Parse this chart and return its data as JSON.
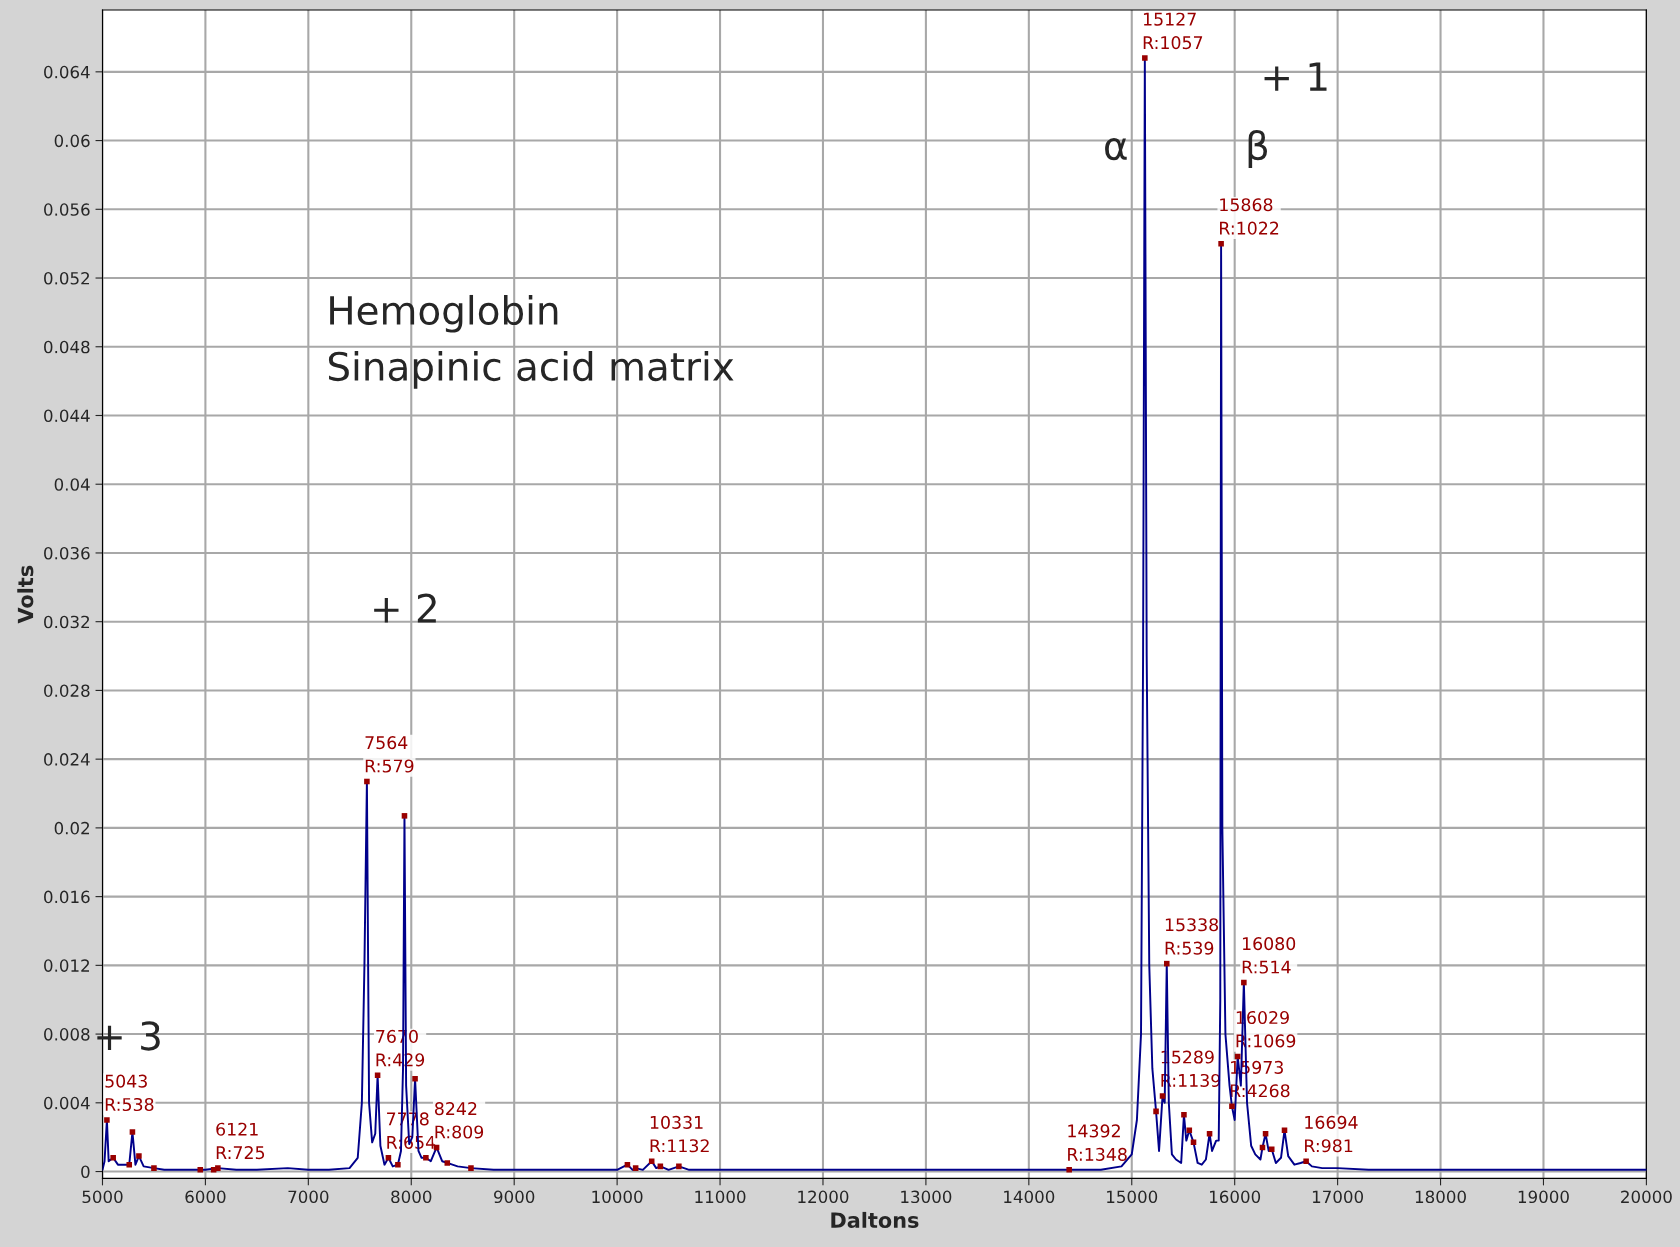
{
  "chart_data": {
    "type": "line",
    "xlabel": "Daltons",
    "ylabel": "Volts",
    "xlim": [
      5000,
      20000
    ],
    "xticks": [
      5000,
      6000,
      7000,
      8000,
      9000,
      10000,
      11000,
      12000,
      13000,
      14000,
      15000,
      16000,
      17000,
      18000,
      19000,
      20000
    ],
    "ylim": [
      -0.0004,
      0.0676
    ],
    "yticks": [
      0,
      0.004,
      0.008,
      0.012,
      0.016,
      0.02,
      0.024,
      0.028,
      0.032,
      0.036,
      0.04,
      0.044,
      0.048,
      0.052,
      0.056,
      0.06,
      0.064
    ],
    "grid": true,
    "series": [
      {
        "color": "#00008b",
        "marker": "none",
        "x": [
          5000,
          5020,
          5043,
          5060,
          5104,
          5150,
          5260,
          5291,
          5320,
          5354,
          5400,
          5500,
          5600,
          5800,
          6000,
          6121,
          6300,
          6500,
          6800,
          7000,
          7200,
          7400,
          7480,
          7520,
          7545,
          7569,
          7590,
          7620,
          7650,
          7673,
          7700,
          7740,
          7778,
          7820,
          7870,
          7900,
          7920,
          7934,
          7950,
          7980,
          8010,
          8037,
          8070,
          8100,
          8142,
          8190,
          8246,
          8300,
          8350,
          8450,
          8580,
          8800,
          9200,
          9600,
          10000,
          10100,
          10150,
          10180,
          10250,
          10336,
          10380,
          10420,
          10500,
          10600,
          10700,
          11000,
          11500,
          12000,
          12500,
          13000,
          13500,
          14000,
          14392,
          14700,
          14900,
          15000,
          15050,
          15090,
          15110,
          15127,
          15145,
          15170,
          15200,
          15236,
          15265,
          15299,
          15320,
          15340,
          15360,
          15390,
          15430,
          15480,
          15507,
          15530,
          15559,
          15600,
          15640,
          15680,
          15720,
          15756,
          15780,
          15820,
          15845,
          15860,
          15868,
          15880,
          15910,
          15950,
          15973,
          16000,
          16029,
          16060,
          16089,
          16120,
          16160,
          16200,
          16250,
          16270,
          16300,
          16330,
          16360,
          16400,
          16450,
          16484,
          16520,
          16580,
          16640,
          16694,
          16750,
          16850,
          17000,
          17300,
          17600,
          18000,
          18500,
          19000,
          19500,
          20000
        ],
        "values": [
          0.0001,
          0.0006,
          0.003,
          0.0006,
          0.0008,
          0.0004,
          0.0004,
          0.0023,
          0.0004,
          0.0009,
          0.0003,
          0.0002,
          0.0001,
          0.0001,
          0.0001,
          0.0002,
          0.0001,
          0.0001,
          0.0002,
          0.0001,
          0.0001,
          0.0002,
          0.0008,
          0.004,
          0.012,
          0.0227,
          0.004,
          0.0017,
          0.0022,
          0.0056,
          0.0015,
          0.0004,
          0.0008,
          0.0003,
          0.0004,
          0.0012,
          0.006,
          0.0207,
          0.005,
          0.0016,
          0.002,
          0.0054,
          0.0012,
          0.0008,
          0.0008,
          0.0006,
          0.0014,
          0.0006,
          0.0005,
          0.0003,
          0.0002,
          0.0001,
          0.0001,
          0.0001,
          0.0001,
          0.0004,
          0.0001,
          0.0002,
          0.0001,
          0.0006,
          0.0002,
          0.0003,
          0.0001,
          0.0003,
          0.0001,
          0.0001,
          0.0001,
          0.0001,
          0.0001,
          0.0001,
          0.0001,
          0.0001,
          0.0001,
          0.0001,
          0.0003,
          0.001,
          0.003,
          0.008,
          0.03,
          0.0648,
          0.03,
          0.012,
          0.006,
          0.0035,
          0.0012,
          0.0044,
          0.004,
          0.0121,
          0.004,
          0.001,
          0.0007,
          0.0005,
          0.0033,
          0.0018,
          0.0024,
          0.0017,
          0.0005,
          0.0004,
          0.0007,
          0.0022,
          0.0012,
          0.0018,
          0.0018,
          0.01,
          0.054,
          0.02,
          0.008,
          0.005,
          0.0038,
          0.003,
          0.0067,
          0.005,
          0.011,
          0.004,
          0.0015,
          0.001,
          0.0007,
          0.0014,
          0.0022,
          0.0012,
          0.0013,
          0.0005,
          0.0008,
          0.0024,
          0.0009,
          0.0004,
          0.0005,
          0.0006,
          0.0003,
          0.0002,
          0.0002,
          0.0001,
          0.0001,
          0.0001,
          0.0001,
          0.0001,
          0.0001,
          0.0001
        ]
      },
      {
        "type": "scatter",
        "color": "#990000",
        "marker": "square",
        "x": [
          5043,
          5104,
          5260,
          5291,
          5354,
          5500,
          5950,
          6080,
          6121,
          7569,
          7673,
          7778,
          7870,
          7934,
          8037,
          8142,
          8246,
          8350,
          8580,
          10100,
          10180,
          10336,
          10420,
          10600,
          14392,
          15127,
          15236,
          15299,
          15340,
          15507,
          15559,
          15600,
          15756,
          15868,
          15973,
          16029,
          16089,
          16270,
          16300,
          16360,
          16484,
          16694
        ],
        "values": [
          0.003,
          0.0008,
          0.0004,
          0.0023,
          0.0009,
          0.0002,
          0.0001,
          0.0001,
          0.0002,
          0.0227,
          0.0056,
          0.0008,
          0.0004,
          0.0207,
          0.0054,
          0.0008,
          0.0014,
          0.0005,
          0.0002,
          0.0004,
          0.0002,
          0.0006,
          0.0003,
          0.0003,
          0.0001,
          0.0648,
          0.0035,
          0.0044,
          0.0121,
          0.0033,
          0.0024,
          0.0017,
          0.0022,
          0.054,
          0.0038,
          0.0067,
          0.011,
          0.0014,
          0.0022,
          0.0013,
          0.0024,
          0.0006
        ]
      }
    ],
    "annotations": [
      "Hemoglobin",
      "Sinapinic acid matrix",
      "+ 3",
      "+ 2",
      "+ 1",
      "α",
      "β",
      {
        "text": "5043\nR:538",
        "x": 5043,
        "y": 0.003
      },
      {
        "text": "6121\nR:725",
        "x": 6121,
        "y": 0.0002
      },
      {
        "text": "7564\nR:579",
        "x": 7569,
        "y": 0.0227
      },
      {
        "text": "7670\nR:429",
        "x": 7673,
        "y": 0.0056
      },
      {
        "text": "7778\nR:654",
        "x": 7778,
        "y": 0.0008
      },
      {
        "text": "8242\nR:809",
        "x": 8246,
        "y": 0.0014
      },
      {
        "text": "10331\nR:1132",
        "x": 10336,
        "y": 0.0006
      },
      {
        "text": "14392\nR:1348",
        "x": 14392,
        "y": 0.0001
      },
      {
        "text": "15127\nR:1057",
        "x": 15127,
        "y": 0.0648
      },
      {
        "text": "15289\nR:1139",
        "x": 15299,
        "y": 0.0044
      },
      {
        "text": "15338\nR:539",
        "x": 15340,
        "y": 0.0121
      },
      {
        "text": "15868\nR:1022",
        "x": 15868,
        "y": 0.054
      },
      {
        "text": "15973\nR:4268",
        "x": 15973,
        "y": 0.0038
      },
      {
        "text": "16029\nR:1069",
        "x": 16029,
        "y": 0.0067
      },
      {
        "text": "16080\nR:514",
        "x": 16089,
        "y": 0.011
      },
      {
        "text": "16694\nR:981",
        "x": 16694,
        "y": 0.0006
      }
    ]
  }
}
